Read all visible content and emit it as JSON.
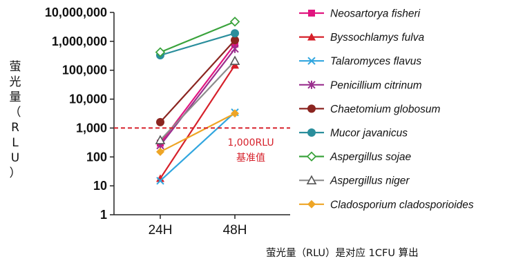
{
  "chart_data": {
    "type": "line",
    "y_scale": "log",
    "ylim": [
      1,
      10000000
    ],
    "y_ticks": [
      "1",
      "10",
      "100",
      "1,000",
      "10,000",
      "100,000",
      "1,000,000",
      "10,000,000"
    ],
    "categories": [
      "24H",
      "48H"
    ],
    "ylabel_chars": [
      "萤",
      "光",
      "量",
      "（",
      "R",
      "L",
      "U",
      "）"
    ],
    "threshold": {
      "value": 1000,
      "label_line1": "1,000RLU",
      "label_line2": "基准值",
      "color": "#d6202a"
    },
    "note": "萤光量（RLU）是对应 1CFU 算出",
    "legend_position": "right",
    "series": [
      {
        "name": "Neosartorya fisheri",
        "values": [
          300,
          800000
        ],
        "color": "#e0157f",
        "marker": "square"
      },
      {
        "name": "Byssochlamys fulva",
        "values": [
          18,
          150000
        ],
        "color": "#d6202a",
        "marker": "triangle"
      },
      {
        "name": "Talaromyces flavus",
        "values": [
          15,
          3500
        ],
        "color": "#31a6df",
        "marker": "x"
      },
      {
        "name": "Penicillium citrinum",
        "values": [
          250,
          550000
        ],
        "color": "#9a2f8e",
        "marker": "asterisk"
      },
      {
        "name": "Chaetomium globosum",
        "values": [
          1600,
          1100000
        ],
        "color": "#8b2520",
        "marker": "circle"
      },
      {
        "name": "Mucor javanicus",
        "values": [
          330000,
          1900000
        ],
        "color": "#2a8e9c",
        "marker": "circle"
      },
      {
        "name": "Aspergillus sojae",
        "values": [
          420000,
          4800000
        ],
        "color": "#3aa33c",
        "marker": "diamond-open"
      },
      {
        "name": "Aspergillus niger",
        "values": [
          380,
          210000
        ],
        "color": "#8c8c8c",
        "marker": "triangle-open"
      },
      {
        "name": "Cladosporium cladosporioides",
        "values": [
          150,
          3200
        ],
        "color": "#eea526",
        "marker": "diamond"
      }
    ]
  }
}
